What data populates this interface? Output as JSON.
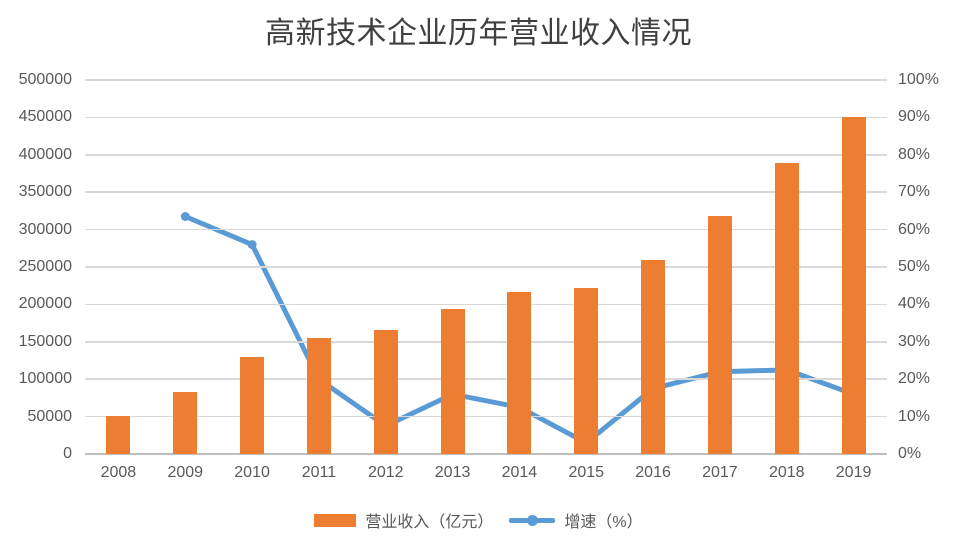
{
  "title": "高新技术企业历年营业收入情况",
  "chart_data": {
    "type": "combo-bar-line",
    "title": "高新技术企业历年营业收入情况",
    "categories": [
      "2008",
      "2009",
      "2010",
      "2011",
      "2012",
      "2013",
      "2014",
      "2015",
      "2016",
      "2017",
      "2018",
      "2019"
    ],
    "series": [
      {
        "name": "营业收入（亿元）",
        "type": "bar",
        "axis": "left",
        "color": "#ED7D31",
        "values": [
          51000,
          83000,
          130000,
          155000,
          166000,
          194000,
          216000,
          222000,
          260000,
          318000,
          389000,
          450000
        ]
      },
      {
        "name": "增速（%）",
        "type": "line",
        "axis": "right",
        "color": "#5B9BD5",
        "values": [
          null,
          63.5,
          56,
          20,
          7.5,
          16,
          12.5,
          3,
          17.5,
          22,
          22.5,
          16
        ]
      }
    ],
    "left_axis": {
      "min": 0,
      "max": 500000,
      "step": 50000,
      "tick_labels": [
        "0",
        "50000",
        "100000",
        "150000",
        "200000",
        "250000",
        "300000",
        "350000",
        "400000",
        "450000",
        "500000"
      ]
    },
    "right_axis": {
      "min": 0,
      "max": 100,
      "step": 10,
      "tick_labels": [
        "0%",
        "10%",
        "20%",
        "30%",
        "40%",
        "50%",
        "60%",
        "70%",
        "80%",
        "90%",
        "100%"
      ]
    },
    "grid": true,
    "legend_position": "bottom",
    "colors": {
      "gridline": "#D9D9D9",
      "axis_line": "#BFBFBF",
      "tick_text": "#595959",
      "title_text": "#404040",
      "background": "#FFFFFF"
    }
  }
}
